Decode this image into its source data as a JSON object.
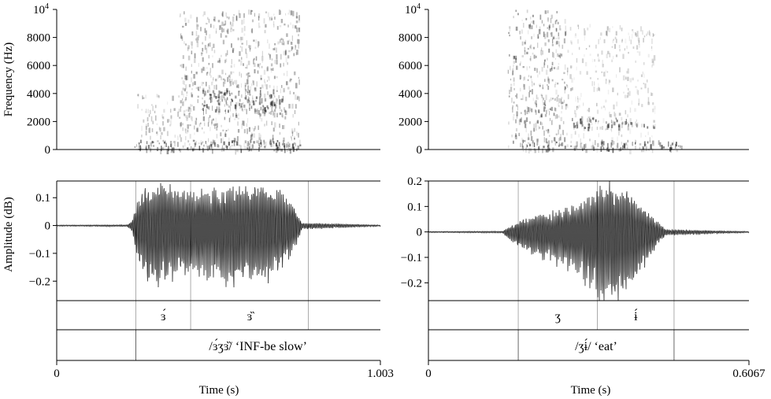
{
  "shared_labels": {
    "spectrogram_ylabel": "Frequency (Hz)",
    "waveform_ylabel": "Amplitude (dB)",
    "xlabel": "Time (s)"
  },
  "chart_data": [
    {
      "type": "heatmap",
      "panel": "left-spectrogram",
      "ylabel": "Frequency (Hz)",
      "ylim": [
        0,
        10000
      ],
      "yticks": [
        "0",
        "2000",
        "4000",
        "6000",
        "8000",
        "10^4"
      ],
      "xlim": [
        0,
        1.003
      ],
      "energy_bands": [
        {
          "t0": 0.24,
          "t1": 0.415,
          "fLow": 0,
          "fHigh": 4000,
          "strength": 0.45
        },
        {
          "t0": 0.38,
          "t1": 0.75,
          "fLow": 0,
          "fHigh": 10000,
          "strength": 0.55
        },
        {
          "t0": 0.45,
          "t1": 0.7,
          "fLow": 2800,
          "fHigh": 4300,
          "strength": 0.85
        },
        {
          "t0": 0.24,
          "t1": 0.77,
          "fLow": 0,
          "fHigh": 700,
          "strength": 0.9
        }
      ]
    },
    {
      "type": "line",
      "panel": "left-waveform",
      "ylabel": "Amplitude (dB)",
      "ylim": [
        -0.27,
        0.16
      ],
      "yticks": [
        0.1,
        0,
        -0.1,
        -0.2
      ],
      "ytick_labels": [
        "0.1",
        "0",
        "−0.1",
        "−0.2"
      ],
      "xlim": [
        0,
        1.003
      ],
      "envelope": [
        {
          "t": 0.0,
          "amp": 0.002
        },
        {
          "t": 0.22,
          "amp": 0.003
        },
        {
          "t": 0.235,
          "amp": 0.02
        },
        {
          "t": 0.25,
          "amp": 0.09
        },
        {
          "t": 0.28,
          "amp": 0.15
        },
        {
          "t": 0.33,
          "amp": 0.16
        },
        {
          "t": 0.38,
          "amp": 0.13
        },
        {
          "t": 0.45,
          "amp": 0.13
        },
        {
          "t": 0.55,
          "amp": 0.15
        },
        {
          "t": 0.65,
          "amp": 0.15
        },
        {
          "t": 0.7,
          "amp": 0.12
        },
        {
          "t": 0.73,
          "amp": 0.08
        },
        {
          "t": 0.76,
          "amp": 0.01
        },
        {
          "t": 1.003,
          "amp": 0.002
        }
      ]
    },
    {
      "type": "heatmap",
      "panel": "right-spectrogram",
      "ylabel": "Frequency (Hz)",
      "ylim": [
        0,
        10000
      ],
      "yticks": [
        "0",
        "2000",
        "4000",
        "6000",
        "8000",
        "10^4"
      ],
      "xlim": [
        0,
        0.6067
      ],
      "energy_bands": [
        {
          "t0": 0.15,
          "t1": 0.26,
          "fLow": 0,
          "fHigh": 10000,
          "strength": 0.6
        },
        {
          "t0": 0.26,
          "t1": 0.43,
          "fLow": 0,
          "fHigh": 9000,
          "strength": 0.35
        },
        {
          "t0": 0.27,
          "t1": 0.43,
          "fLow": 1600,
          "fHigh": 2300,
          "strength": 0.85
        },
        {
          "t0": 0.17,
          "t1": 0.48,
          "fLow": 0,
          "fHigh": 700,
          "strength": 0.9
        }
      ]
    },
    {
      "type": "line",
      "panel": "right-waveform",
      "ylabel": "",
      "ylim": [
        -0.27,
        0.2
      ],
      "yticks": [
        0.2,
        0.1,
        0,
        -0.1,
        -0.2
      ],
      "ytick_labels": [
        "0.2",
        "0.1",
        "0",
        "−0.1",
        "−0.2"
      ],
      "xlim": [
        0,
        0.6067
      ],
      "envelope": [
        {
          "t": 0.0,
          "amp": 0.002
        },
        {
          "t": 0.14,
          "amp": 0.003
        },
        {
          "t": 0.16,
          "amp": 0.03
        },
        {
          "t": 0.2,
          "amp": 0.07
        },
        {
          "t": 0.25,
          "amp": 0.09
        },
        {
          "t": 0.3,
          "amp": 0.14
        },
        {
          "t": 0.33,
          "amp": 0.2
        },
        {
          "t": 0.36,
          "amp": 0.2
        },
        {
          "t": 0.4,
          "amp": 0.12
        },
        {
          "t": 0.43,
          "amp": 0.05
        },
        {
          "t": 0.45,
          "amp": 0.01
        },
        {
          "t": 0.6067,
          "amp": 0.002
        }
      ]
    }
  ],
  "left": {
    "segments": [
      {
        "start": 0.245,
        "end": 0.415,
        "label": "ɜ́"
      },
      {
        "start": 0.415,
        "end": 0.78,
        "label": "ɜ̏"
      }
    ],
    "word_interval": {
      "start": 0.245,
      "end": 1.003
    },
    "gloss": "/ɜ́ʒɜ̏/ ‘INF-be slow’",
    "x_start_label": "0",
    "x_end_label": "1.003",
    "xlabel": "Time (s)"
  },
  "right": {
    "segments": [
      {
        "start": 0.17,
        "end": 0.32,
        "label": "ʒ"
      },
      {
        "start": 0.32,
        "end": 0.465,
        "label": "ɨ́"
      }
    ],
    "word_interval": {
      "start": 0.17,
      "end": 0.465
    },
    "gloss": "/ʒɨ́/ ‘eat’",
    "x_start_label": "0",
    "x_end_label": "0.6067",
    "xlabel": "Time (s)"
  }
}
